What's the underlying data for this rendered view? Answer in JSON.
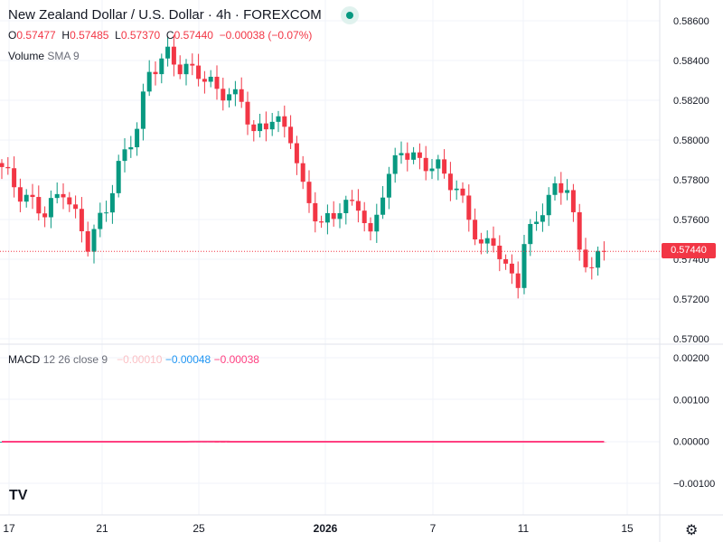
{
  "header": {
    "title": "New Zealand Dollar / U.S. Dollar · 4h · FOREXCOM",
    "ohlc": {
      "o_label": "O",
      "o": "0.57477",
      "h_label": "H",
      "h": "0.57485",
      "l_label": "L",
      "l": "0.57370",
      "c_label": "C",
      "c": "0.57440",
      "change": "−0.00038 (−0.07%)"
    },
    "volume_label": "Volume",
    "volume_params": "SMA 9"
  },
  "macd": {
    "label": "MACD",
    "params": "12 26 close 9",
    "hist": "−0.00010",
    "macd": "−0.00048",
    "signal": "−0.00038"
  },
  "price_axis": [
    "0.58600",
    "0.58400",
    "0.58200",
    "0.58000",
    "0.57800",
    "0.57600",
    "0.57400",
    "0.57200",
    "0.57000"
  ],
  "current_price": "0.57440",
  "macd_axis": [
    "0.00200",
    "0.00100",
    "0.00000",
    "−0.00100"
  ],
  "time_axis": [
    "17",
    "21",
    "25",
    "2026",
    "7",
    "11",
    "15"
  ],
  "colors": {
    "up": "#089981",
    "down": "#f23645",
    "macd": "#2962ff",
    "signal": "#ff4081"
  },
  "chart_data": {
    "type": "candlestick",
    "ylim": [
      0.57,
      0.586
    ],
    "close_keypoints": [
      [
        0,
        0.57864
      ],
      [
        3,
        0.57727
      ],
      [
        7,
        0.57636
      ],
      [
        10,
        0.5775
      ],
      [
        14,
        0.57477
      ],
      [
        17,
        0.57659
      ],
      [
        19,
        0.57864
      ],
      [
        22,
        0.58068
      ],
      [
        24,
        0.58341
      ],
      [
        27,
        0.58432
      ],
      [
        29,
        0.58364
      ],
      [
        32,
        0.58341
      ],
      [
        35,
        0.5825
      ],
      [
        39,
        0.58205
      ],
      [
        41,
        0.58023
      ],
      [
        44,
        0.58114
      ],
      [
        47,
        0.58023
      ],
      [
        49,
        0.5775
      ],
      [
        52,
        0.57568
      ],
      [
        55,
        0.57659
      ],
      [
        58,
        0.57682
      ],
      [
        60,
        0.575
      ],
      [
        62,
        0.5775
      ],
      [
        65,
        0.57955
      ],
      [
        68,
        0.57886
      ],
      [
        71,
        0.57864
      ],
      [
        74,
        0.5775
      ],
      [
        76,
        0.57614
      ],
      [
        78,
        0.57455
      ],
      [
        80,
        0.575
      ],
      [
        82,
        0.57341
      ],
      [
        84,
        0.57295
      ],
      [
        85,
        0.57477
      ],
      [
        88,
        0.57659
      ],
      [
        90,
        0.5775
      ],
      [
        92,
        0.57773
      ],
      [
        94,
        0.57432
      ],
      [
        96,
        0.57364
      ],
      [
        98,
        0.5744
      ]
    ]
  }
}
